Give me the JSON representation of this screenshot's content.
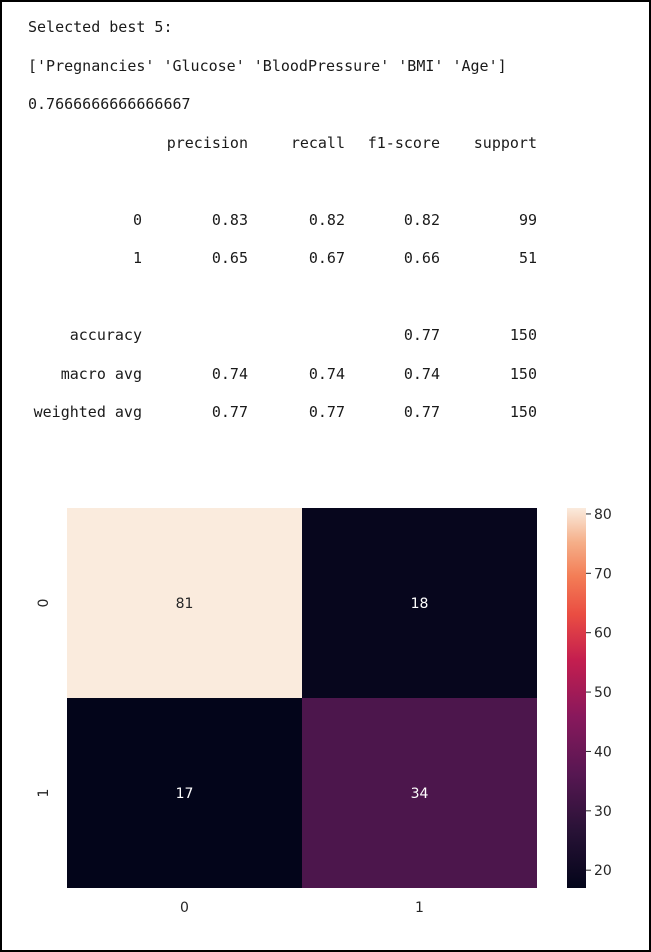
{
  "output": {
    "selected_label": "Selected best 5:",
    "features_line": "['Pregnancies' 'Glucose' 'BloodPressure' 'BMI' 'Age']",
    "score": "0.7666666666666667"
  },
  "report": {
    "headers": [
      "precision",
      "recall",
      "f1-score",
      "support"
    ],
    "rows": [
      {
        "label": "0",
        "cells": [
          "0.83",
          "0.82",
          "0.82",
          "99"
        ]
      },
      {
        "label": "1",
        "cells": [
          "0.65",
          "0.67",
          "0.66",
          "51"
        ]
      },
      {
        "label": "accuracy",
        "cells": [
          "",
          "",
          "0.77",
          "150"
        ]
      },
      {
        "label": "macro avg",
        "cells": [
          "0.74",
          "0.74",
          "0.74",
          "150"
        ]
      },
      {
        "label": "weighted avg",
        "cells": [
          "0.77",
          "0.77",
          "0.77",
          "150"
        ]
      }
    ]
  },
  "chart_data": {
    "type": "heatmap",
    "x_categories": [
      "0",
      "1"
    ],
    "y_categories": [
      "0",
      "1"
    ],
    "values": [
      [
        81,
        18
      ],
      [
        17,
        34
      ]
    ],
    "colorbar": {
      "ticks": [
        80,
        70,
        60,
        50,
        40,
        30,
        20
      ],
      "range": [
        17,
        81
      ],
      "colormap": "rocket"
    },
    "colors": {
      "high": "#faebdd",
      "low": "#03051a",
      "mid": "#701f57",
      "cell_text_light": "#ffffff",
      "cell_text_dark": "#262626"
    }
  }
}
